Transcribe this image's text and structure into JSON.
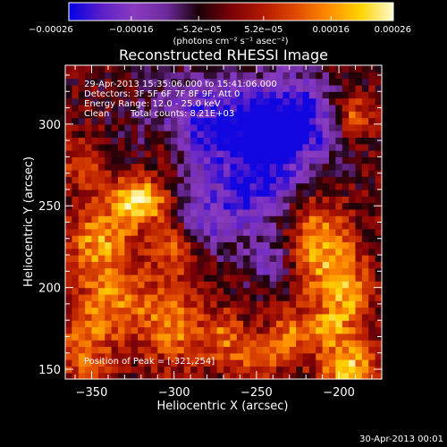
{
  "chart_data": {
    "type": "heatmap",
    "title": "Reconstructed RHESSI Image",
    "xlabel": "Heliocentric X (arcsec)",
    "ylabel": "Heliocentric Y (arcsec)",
    "xlim": [
      -366,
      -174
    ],
    "ylim": [
      144,
      336
    ],
    "x_ticks": [
      -350,
      -300,
      -250,
      -200
    ],
    "y_ticks": [
      150,
      200,
      250,
      300
    ],
    "x_tick_labels": [
      "−350",
      "−300",
      "−250",
      "−200"
    ],
    "y_tick_labels": [
      "150",
      "200",
      "250",
      "300"
    ],
    "colorbar": {
      "min": -0.00026,
      "max": 0.00026,
      "tick_values": [
        -0.00026,
        -0.00016,
        -5.2e-05,
        5.2e-05,
        0.00016,
        0.00026
      ],
      "tick_labels": [
        "−0.00026",
        "−0.00016",
        "−5.2e−05",
        "5.2e−05",
        "0.00016",
        "0.00026"
      ],
      "units": "(photons cm⁻² s⁻¹ asec⁻²)"
    },
    "colormap_stops": [
      "#0000e6",
      "#5a1ec8",
      "#8a3cc0",
      "#6e2a9c",
      "#1a0008",
      "#7a0008",
      "#b41a00",
      "#e04a00",
      "#ff8c00",
      "#ffd400",
      "#fffad0"
    ],
    "grid_cols": 48,
    "grid_rows": 48,
    "peak": {
      "x": -321,
      "y": 254
    },
    "hot_blobs": [
      {
        "x": -321,
        "y": 254,
        "amp": 1.0,
        "sx": 12,
        "sy": 10
      },
      {
        "x": -345,
        "y": 228,
        "amp": 0.7,
        "sx": 14,
        "sy": 16
      },
      {
        "x": -300,
        "y": 225,
        "amp": 0.55,
        "sx": 10,
        "sy": 12
      },
      {
        "x": -335,
        "y": 190,
        "amp": 0.6,
        "sx": 18,
        "sy": 14
      },
      {
        "x": -355,
        "y": 160,
        "amp": 0.55,
        "sx": 12,
        "sy": 14
      },
      {
        "x": -300,
        "y": 175,
        "amp": 0.55,
        "sx": 12,
        "sy": 18
      },
      {
        "x": -270,
        "y": 170,
        "amp": 0.5,
        "sx": 10,
        "sy": 12
      },
      {
        "x": -250,
        "y": 155,
        "amp": 0.45,
        "sx": 10,
        "sy": 10
      },
      {
        "x": -215,
        "y": 225,
        "amp": 0.75,
        "sx": 12,
        "sy": 22
      },
      {
        "x": -195,
        "y": 195,
        "amp": 0.65,
        "sx": 10,
        "sy": 22
      },
      {
        "x": -195,
        "y": 150,
        "amp": 0.8,
        "sx": 12,
        "sy": 10
      },
      {
        "x": -230,
        "y": 170,
        "amp": 0.55,
        "sx": 10,
        "sy": 10
      },
      {
        "x": -192,
        "y": 305,
        "amp": 0.6,
        "sx": 8,
        "sy": 10
      },
      {
        "x": -305,
        "y": 285,
        "amp": 0.4,
        "sx": 8,
        "sy": 8
      },
      {
        "x": -355,
        "y": 275,
        "amp": 0.45,
        "sx": 10,
        "sy": 10
      },
      {
        "x": -210,
        "y": 175,
        "amp": 0.5,
        "sx": 8,
        "sy": 8
      }
    ],
    "cold_blobs": [
      {
        "x": -270,
        "y": 300,
        "amp": 0.9,
        "sx": 30,
        "sy": 22
      },
      {
        "x": -225,
        "y": 300,
        "amp": 0.85,
        "sx": 18,
        "sy": 20
      },
      {
        "x": -250,
        "y": 260,
        "amp": 0.7,
        "sx": 18,
        "sy": 18
      },
      {
        "x": -280,
        "y": 240,
        "amp": 0.55,
        "sx": 14,
        "sy": 14
      },
      {
        "x": -240,
        "y": 215,
        "amp": 0.5,
        "sx": 12,
        "sy": 12
      }
    ]
  },
  "annotations": {
    "time_range": "29-Apr-2013 15:35:06.000 to 15:41:06.000",
    "detectors": "Detectors: 3F 5F 6F 7F 8F 9F, Att 0",
    "energy": "Energy Range: 12.0 - 25.0 keV",
    "clean_label": "Clean",
    "total_counts": "Total counts: 8.21E+03",
    "peak_position": "Position of Peak = [-321,254]"
  },
  "footer": {
    "timestamp": "30-Apr-2013 00:01"
  }
}
